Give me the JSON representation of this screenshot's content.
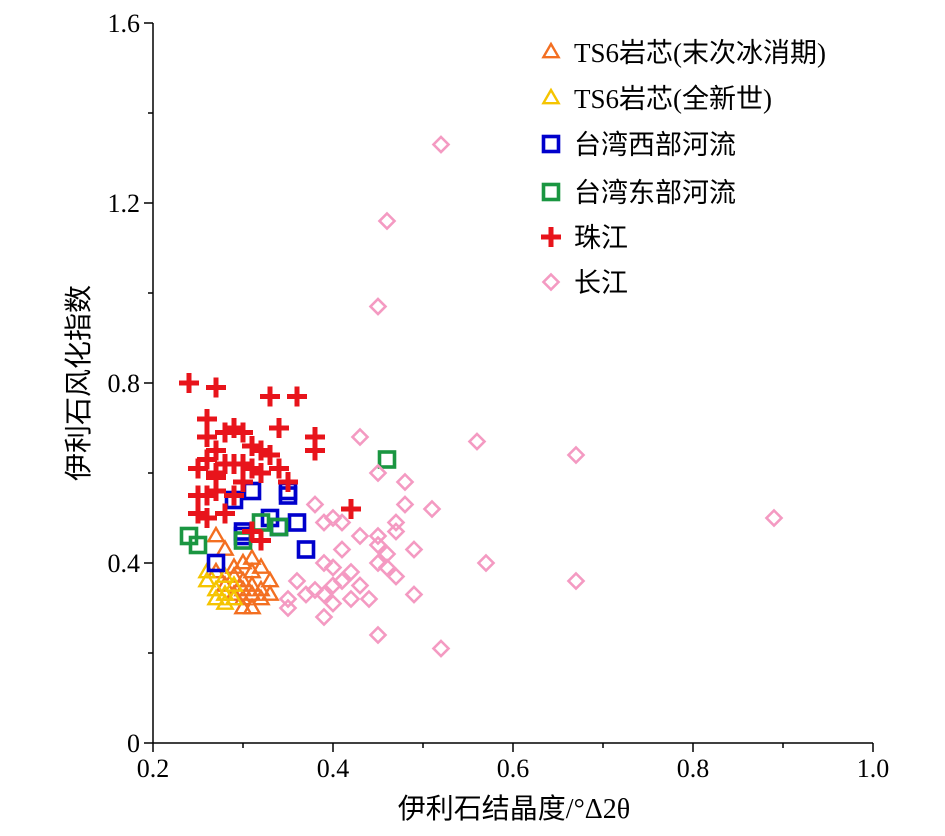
{
  "chart_data": {
    "type": "scatter",
    "xlabel": "伊利石结晶度/°Δ2θ",
    "ylabel": "伊利石风化指数",
    "xlim": [
      0.2,
      1.0
    ],
    "ylim": [
      0,
      1.6
    ],
    "x_ticks": [
      "0.2",
      "0.4",
      "0.6",
      "0.8",
      "1.0"
    ],
    "y_ticks": [
      "0",
      "0.4",
      "0.8",
      "1.2",
      "1.6"
    ],
    "grid": false,
    "legend_position": "top-right",
    "series": [
      {
        "name": "TS6岩芯(末次冰消期)",
        "marker": "triangle",
        "color": "#f36f21",
        "points": [
          [
            0.27,
            0.46
          ],
          [
            0.28,
            0.43
          ],
          [
            0.29,
            0.37
          ],
          [
            0.29,
            0.33
          ],
          [
            0.3,
            0.4
          ],
          [
            0.3,
            0.36
          ],
          [
            0.3,
            0.34
          ],
          [
            0.3,
            0.32
          ],
          [
            0.31,
            0.41
          ],
          [
            0.31,
            0.38
          ],
          [
            0.31,
            0.35
          ],
          [
            0.31,
            0.33
          ],
          [
            0.32,
            0.39
          ],
          [
            0.32,
            0.34
          ],
          [
            0.32,
            0.32
          ],
          [
            0.3,
            0.3
          ],
          [
            0.28,
            0.35
          ],
          [
            0.27,
            0.38
          ],
          [
            0.33,
            0.36
          ],
          [
            0.33,
            0.33
          ],
          [
            0.29,
            0.39
          ],
          [
            0.31,
            0.3
          ]
        ]
      },
      {
        "name": "TS6岩芯(全新世)",
        "marker": "triangle",
        "color": "#f5c400",
        "points": [
          [
            0.26,
            0.36
          ],
          [
            0.27,
            0.34
          ],
          [
            0.27,
            0.32
          ],
          [
            0.28,
            0.31
          ],
          [
            0.28,
            0.33
          ],
          [
            0.29,
            0.35
          ],
          [
            0.26,
            0.38
          ],
          [
            0.28,
            0.37
          ],
          [
            0.29,
            0.32
          ]
        ]
      },
      {
        "name": "台湾西部河流",
        "marker": "square",
        "color": "#0000cc",
        "points": [
          [
            0.27,
            0.4
          ],
          [
            0.29,
            0.54
          ],
          [
            0.3,
            0.47
          ],
          [
            0.31,
            0.56
          ],
          [
            0.33,
            0.5
          ],
          [
            0.34,
            0.48
          ],
          [
            0.35,
            0.56
          ],
          [
            0.36,
            0.49
          ],
          [
            0.37,
            0.43
          ],
          [
            0.3,
            0.46
          ],
          [
            0.35,
            0.55
          ]
        ]
      },
      {
        "name": "台湾东部河流",
        "marker": "square",
        "color": "#1a9641",
        "points": [
          [
            0.24,
            0.46
          ],
          [
            0.25,
            0.44
          ],
          [
            0.3,
            0.45
          ],
          [
            0.32,
            0.49
          ],
          [
            0.34,
            0.48
          ],
          [
            0.46,
            0.63
          ]
        ]
      },
      {
        "name": "珠江",
        "marker": "plus",
        "color": "#e8141b",
        "points": [
          [
            0.24,
            0.8
          ],
          [
            0.27,
            0.79
          ],
          [
            0.26,
            0.72
          ],
          [
            0.26,
            0.68
          ],
          [
            0.27,
            0.65
          ],
          [
            0.28,
            0.69
          ],
          [
            0.29,
            0.7
          ],
          [
            0.3,
            0.69
          ],
          [
            0.31,
            0.66
          ],
          [
            0.32,
            0.65
          ],
          [
            0.33,
            0.64
          ],
          [
            0.34,
            0.7
          ],
          [
            0.33,
            0.77
          ],
          [
            0.36,
            0.77
          ],
          [
            0.38,
            0.68
          ],
          [
            0.38,
            0.65
          ],
          [
            0.25,
            0.61
          ],
          [
            0.26,
            0.63
          ],
          [
            0.27,
            0.59
          ],
          [
            0.28,
            0.62
          ],
          [
            0.29,
            0.62
          ],
          [
            0.3,
            0.62
          ],
          [
            0.3,
            0.58
          ],
          [
            0.31,
            0.61
          ],
          [
            0.32,
            0.6
          ],
          [
            0.34,
            0.61
          ],
          [
            0.35,
            0.58
          ],
          [
            0.25,
            0.55
          ],
          [
            0.26,
            0.55
          ],
          [
            0.27,
            0.56
          ],
          [
            0.28,
            0.51
          ],
          [
            0.25,
            0.51
          ],
          [
            0.31,
            0.47
          ],
          [
            0.32,
            0.45
          ],
          [
            0.42,
            0.52
          ],
          [
            0.26,
            0.5
          ],
          [
            0.27,
            0.6
          ],
          [
            0.29,
            0.55
          ]
        ]
      },
      {
        "name": "长江",
        "marker": "diamond",
        "color": "#f49ac2",
        "points": [
          [
            0.52,
            1.33
          ],
          [
            0.46,
            1.16
          ],
          [
            0.45,
            0.97
          ],
          [
            0.43,
            0.68
          ],
          [
            0.56,
            0.67
          ],
          [
            0.67,
            0.64
          ],
          [
            0.45,
            0.6
          ],
          [
            0.48,
            0.58
          ],
          [
            0.38,
            0.53
          ],
          [
            0.48,
            0.53
          ],
          [
            0.51,
            0.52
          ],
          [
            0.89,
            0.5
          ],
          [
            0.39,
            0.49
          ],
          [
            0.41,
            0.49
          ],
          [
            0.47,
            0.49
          ],
          [
            0.4,
            0.5
          ],
          [
            0.43,
            0.46
          ],
          [
            0.45,
            0.46
          ],
          [
            0.47,
            0.47
          ],
          [
            0.45,
            0.44
          ],
          [
            0.46,
            0.42
          ],
          [
            0.49,
            0.43
          ],
          [
            0.41,
            0.43
          ],
          [
            0.39,
            0.4
          ],
          [
            0.4,
            0.39
          ],
          [
            0.45,
            0.4
          ],
          [
            0.46,
            0.39
          ],
          [
            0.47,
            0.37
          ],
          [
            0.57,
            0.4
          ],
          [
            0.42,
            0.38
          ],
          [
            0.36,
            0.36
          ],
          [
            0.38,
            0.34
          ],
          [
            0.4,
            0.35
          ],
          [
            0.39,
            0.33
          ],
          [
            0.35,
            0.32
          ],
          [
            0.35,
            0.3
          ],
          [
            0.37,
            0.33
          ],
          [
            0.4,
            0.31
          ],
          [
            0.42,
            0.32
          ],
          [
            0.44,
            0.32
          ],
          [
            0.49,
            0.33
          ],
          [
            0.67,
            0.36
          ],
          [
            0.39,
            0.28
          ],
          [
            0.45,
            0.24
          ],
          [
            0.52,
            0.21
          ],
          [
            0.41,
            0.36
          ],
          [
            0.43,
            0.35
          ]
        ]
      }
    ]
  }
}
